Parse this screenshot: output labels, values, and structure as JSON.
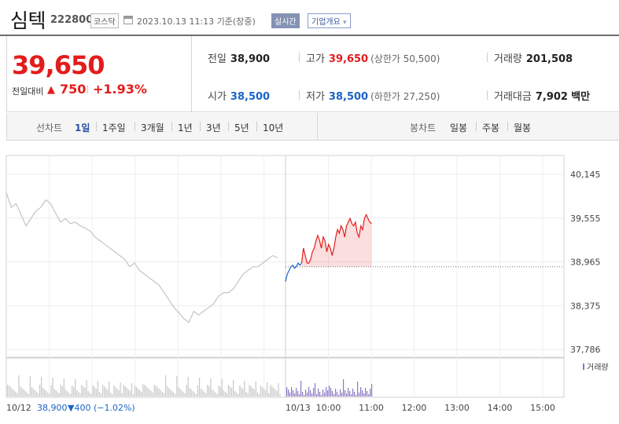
{
  "header": {
    "name": "심텍",
    "code": "222800",
    "market": "코스닥",
    "timestamp": "2023.10.13 11:13 기준(장중)",
    "realtime_label": "실시간",
    "corp_label": "기업개요",
    "corp_arrow": "▾"
  },
  "summary": {
    "price": "39,650",
    "change_label": "전일대비",
    "change_arrow": "▲",
    "change_value": "750",
    "change_pct": "+1.93%",
    "prev_label": "전일",
    "prev_value": "38,900",
    "high_label": "고가",
    "high_value": "39,650",
    "high_limit": "(상한가 50,500)",
    "volume_label": "거래량",
    "volume_value": "201,508",
    "open_label": "시가",
    "open_value": "38,500",
    "low_label": "저가",
    "low_value": "38,500",
    "low_limit": "(하한가 27,250)",
    "amount_label": "거래대금",
    "amount_value": "7,902",
    "amount_unit": "백만"
  },
  "tabs": {
    "line_label": "선차트",
    "line_items": [
      "1일",
      "1주일",
      "3개월",
      "1년",
      "3년",
      "5년",
      "10년"
    ],
    "active": "1일",
    "candle_label": "봉차트",
    "candle_items": [
      "일봉",
      "주봉",
      "월봉"
    ]
  },
  "colors": {
    "up": "#e31c1c",
    "down": "#1c63c9",
    "prev_day": "#c4c4c4",
    "volume": "#8a78c2"
  },
  "chart_data": {
    "type": "line",
    "y_ticks": [
      "40,145",
      "39,555",
      "38,965",
      "38,375",
      "37,786"
    ],
    "ylim": [
      37786,
      40145
    ],
    "prev_close": 38900,
    "x_ticks": [
      "10/13",
      "10:00",
      "11:00",
      "12:00",
      "13:00",
      "14:00",
      "15:00"
    ],
    "prev_day_label": "10/12",
    "prev_day_close": "38,900",
    "prev_day_change": "▼400 (−1.02%)",
    "volume_legend": "거래량",
    "series": [
      {
        "values": [
          39900,
          39700,
          39750,
          39600,
          39450,
          39550,
          39650,
          39700,
          39800,
          39750,
          39620,
          39500,
          39550,
          39480,
          39500,
          39450,
          39420,
          39380,
          39300,
          39250,
          39200,
          39150,
          39100,
          39050,
          39000,
          38900,
          38950,
          38850,
          38800,
          38750,
          38700,
          38650,
          38550,
          38450,
          38350,
          38280,
          38200,
          38150,
          38300,
          38250,
          38300,
          38350,
          38400,
          38500,
          38550,
          38550,
          38600,
          38700,
          38800,
          38850,
          38900,
          38900,
          38950,
          39000,
          39050,
          39020
        ]
      },
      {
        "values": [
          38700,
          38800,
          38850,
          38900,
          38920,
          38880,
          38900,
          38950,
          38920,
          38950
        ]
      },
      {
        "values": [
          38950,
          39150,
          39050,
          38950,
          38950,
          39000,
          39100,
          39150,
          39250,
          39320,
          39250,
          39150,
          39300,
          39250,
          39100,
          39200,
          39150,
          39050,
          39150,
          39300,
          39400,
          39350,
          39450,
          39400,
          39300,
          39450,
          39500,
          39550,
          39480,
          39450,
          39500,
          39350,
          39300,
          39450,
          39400,
          39550,
          39600,
          39550,
          39500,
          39480
        ]
      }
    ]
  }
}
